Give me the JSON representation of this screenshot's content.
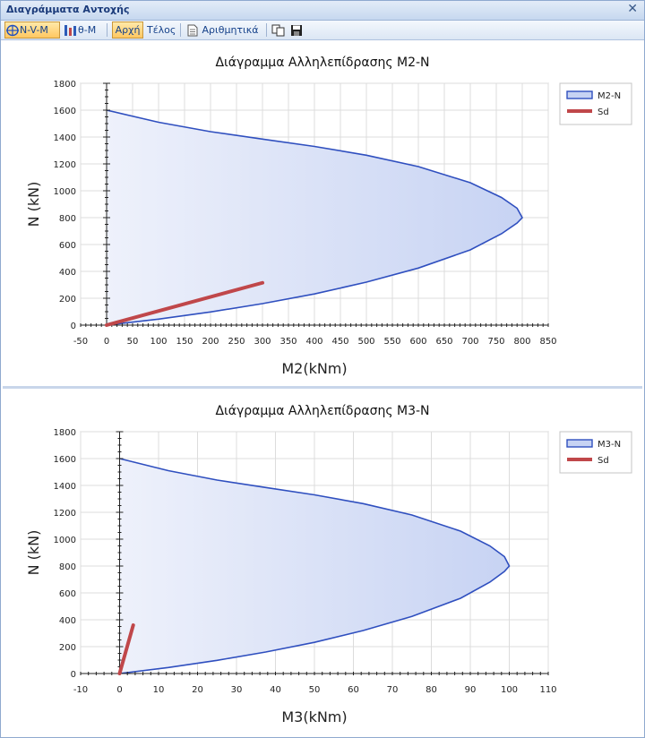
{
  "window": {
    "title": "Διαγράμματα Αντοχής",
    "close_glyph": "✕"
  },
  "toolbar": {
    "nvm_label": "N-V-M",
    "thetam_label": "θ-M",
    "start_label": "Αρχή",
    "end_label": "Τέλος",
    "numeric_label": "Αριθμητικά"
  },
  "colors": {
    "fill": "#c7d3f3",
    "outline": "#2f4fbf",
    "sd": "#c0474a"
  },
  "chart_data": [
    {
      "type": "area",
      "title": "Διάγραμμα Αλληλεπίδρασης M2-N",
      "xlabel": "M2(kNm)",
      "ylabel": "N (kN)",
      "xlim": [
        -50,
        850
      ],
      "ylim": [
        0,
        1800
      ],
      "xticks": [
        -50,
        0,
        50,
        100,
        150,
        200,
        250,
        300,
        350,
        400,
        450,
        500,
        550,
        600,
        650,
        700,
        750,
        800,
        850
      ],
      "yticks": [
        0,
        200,
        400,
        600,
        800,
        1000,
        1200,
        1400,
        1600,
        1800
      ],
      "legend_position": "top-right",
      "series": [
        {
          "name": "M2-N",
          "kind": "envelope",
          "points": [
            [
              0,
              0
            ],
            [
              100,
              45
            ],
            [
              200,
              98
            ],
            [
              300,
              160
            ],
            [
              400,
              232
            ],
            [
              500,
              320
            ],
            [
              600,
              425
            ],
            [
              700,
              560
            ],
            [
              760,
              680
            ],
            [
              790,
              760
            ],
            [
              800,
              800
            ],
            [
              790,
              870
            ],
            [
              760,
              950
            ],
            [
              700,
              1060
            ],
            [
              600,
              1180
            ],
            [
              500,
              1265
            ],
            [
              400,
              1330
            ],
            [
              300,
              1385
            ],
            [
              200,
              1440
            ],
            [
              100,
              1510
            ],
            [
              0,
              1600
            ]
          ]
        },
        {
          "name": "Sd",
          "kind": "line",
          "points": [
            [
              0,
              0
            ],
            [
              300,
              315
            ]
          ]
        }
      ]
    },
    {
      "type": "area",
      "title": "Διάγραμμα Αλληλεπίδρασης M3-N",
      "xlabel": "M3(kNm)",
      "ylabel": "N (kN)",
      "xlim": [
        -10,
        110
      ],
      "ylim": [
        0,
        1800
      ],
      "xticks": [
        -10,
        0,
        10,
        20,
        30,
        40,
        50,
        60,
        70,
        80,
        90,
        100,
        110
      ],
      "yticks": [
        0,
        200,
        400,
        600,
        800,
        1000,
        1200,
        1400,
        1600,
        1800
      ],
      "legend_position": "top-right",
      "series": [
        {
          "name": "M3-N",
          "kind": "envelope",
          "points": [
            [
              0,
              0
            ],
            [
              12.5,
              45
            ],
            [
              25,
              98
            ],
            [
              37.5,
              160
            ],
            [
              50,
              232
            ],
            [
              62.5,
              320
            ],
            [
              75,
              425
            ],
            [
              87.5,
              560
            ],
            [
              95,
              680
            ],
            [
              98.75,
              760
            ],
            [
              100,
              800
            ],
            [
              98.75,
              870
            ],
            [
              95,
              950
            ],
            [
              87.5,
              1060
            ],
            [
              75,
              1180
            ],
            [
              62.5,
              1265
            ],
            [
              50,
              1330
            ],
            [
              37.5,
              1385
            ],
            [
              25,
              1440
            ],
            [
              12.5,
              1510
            ],
            [
              0,
              1600
            ]
          ]
        },
        {
          "name": "Sd",
          "kind": "line",
          "points": [
            [
              0,
              0
            ],
            [
              3.5,
              360
            ]
          ]
        }
      ]
    }
  ]
}
